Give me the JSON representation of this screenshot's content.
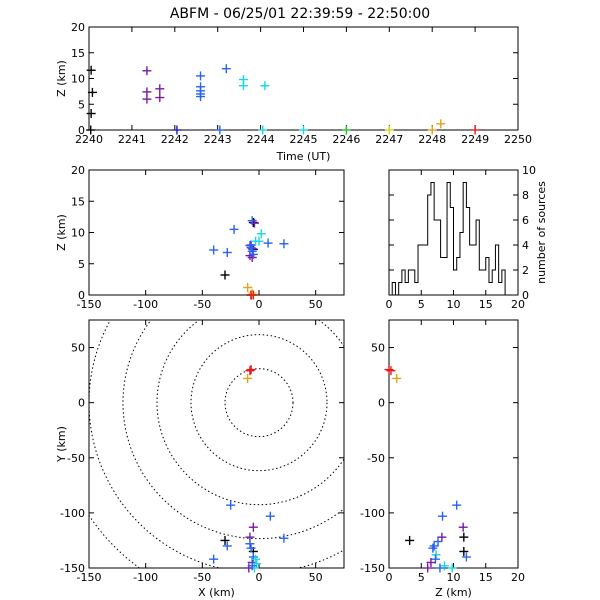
{
  "title": "ABFM - 06/25/01 22:39:59 - 22:50:00",
  "colors": {
    "black": "#000000",
    "purple": "#7a1aa6",
    "navy": "#1a1acc",
    "blue": "#2b63f0",
    "cyan": "#1ad6e6",
    "green": "#22c22a",
    "yellow": "#d6d61a",
    "orange": "#e6a01a",
    "red": "#e61a1a"
  },
  "chart_data": [
    {
      "id": "time",
      "type": "scatter",
      "xlabel": "Time (UT)",
      "ylabel": "Z (km)",
      "xlim": [
        2240,
        2250
      ],
      "ylim": [
        0,
        20
      ],
      "xticks": [
        "2240",
        "2241",
        "2242",
        "2243",
        "2244",
        "2245",
        "2246",
        "2247",
        "2248",
        "2249",
        "2250"
      ],
      "yticks": [
        "0",
        "5",
        "10",
        "15",
        "20"
      ],
      "grid": false,
      "points": [
        {
          "x": 2240.05,
          "y": 11.6,
          "c": "black"
        },
        {
          "x": 2240.08,
          "y": 7.3,
          "c": "black"
        },
        {
          "x": 2240.05,
          "y": 3.2,
          "c": "black"
        },
        {
          "x": 2240.04,
          "y": 0.0,
          "c": "black"
        },
        {
          "x": 2241.35,
          "y": 11.5,
          "c": "purple"
        },
        {
          "x": 2241.35,
          "y": 7.4,
          "c": "purple"
        },
        {
          "x": 2241.35,
          "y": 6.0,
          "c": "purple"
        },
        {
          "x": 2241.65,
          "y": 8.0,
          "c": "purple"
        },
        {
          "x": 2241.65,
          "y": 6.3,
          "c": "purple"
        },
        {
          "x": 2242.05,
          "y": -0.1,
          "c": "navy"
        },
        {
          "x": 2242.6,
          "y": 10.5,
          "c": "blue"
        },
        {
          "x": 2242.6,
          "y": 8.4,
          "c": "blue"
        },
        {
          "x": 2242.6,
          "y": 7.6,
          "c": "blue"
        },
        {
          "x": 2242.6,
          "y": 7.0,
          "c": "blue"
        },
        {
          "x": 2242.6,
          "y": 6.5,
          "c": "blue"
        },
        {
          "x": 2243.2,
          "y": 11.9,
          "c": "blue"
        },
        {
          "x": 2243.05,
          "y": -0.1,
          "c": "blue"
        },
        {
          "x": 2243.6,
          "y": 9.8,
          "c": "cyan"
        },
        {
          "x": 2243.6,
          "y": 8.6,
          "c": "cyan"
        },
        {
          "x": 2244.1,
          "y": 8.6,
          "c": "cyan"
        },
        {
          "x": 2244.05,
          "y": -0.1,
          "c": "cyan"
        },
        {
          "x": 2245.0,
          "y": -0.1,
          "c": "cyan"
        },
        {
          "x": 2246.0,
          "y": -0.1,
          "c": "green"
        },
        {
          "x": 2247.0,
          "y": -0.1,
          "c": "yellow"
        },
        {
          "x": 2248.0,
          "y": 0.0,
          "c": "orange"
        },
        {
          "x": 2248.2,
          "y": 1.2,
          "c": "orange"
        },
        {
          "x": 2249.0,
          "y": -0.1,
          "c": "red"
        }
      ]
    },
    {
      "id": "xz",
      "type": "scatter",
      "xlabel": "",
      "ylabel": "Z (km)",
      "xlim": [
        -150,
        75
      ],
      "ylim": [
        0,
        20
      ],
      "xticks": [
        "-150",
        "-100",
        "-50",
        "0",
        "50"
      ],
      "yticks": [
        "0",
        "5",
        "10",
        "15",
        "20"
      ],
      "grid": false,
      "points": [
        {
          "x": -5,
          "y": 11.6,
          "c": "black"
        },
        {
          "x": -5,
          "y": 7.3,
          "c": "black"
        },
        {
          "x": -30,
          "y": 3.2,
          "c": "black"
        },
        {
          "x": -7,
          "y": 0.0,
          "c": "black"
        },
        {
          "x": -4,
          "y": 11.5,
          "c": "purple"
        },
        {
          "x": -6,
          "y": 7.4,
          "c": "purple"
        },
        {
          "x": -6,
          "y": 6.0,
          "c": "purple"
        },
        {
          "x": -7,
          "y": 8.0,
          "c": "purple"
        },
        {
          "x": -8,
          "y": 6.3,
          "c": "purple"
        },
        {
          "x": -7,
          "y": -0.1,
          "c": "navy"
        },
        {
          "x": -22,
          "y": 10.5,
          "c": "blue"
        },
        {
          "x": -40,
          "y": 7.2,
          "c": "blue"
        },
        {
          "x": -28,
          "y": 6.8,
          "c": "blue"
        },
        {
          "x": -7,
          "y": 7.6,
          "c": "blue"
        },
        {
          "x": -6,
          "y": 7.0,
          "c": "blue"
        },
        {
          "x": -5,
          "y": 6.5,
          "c": "blue"
        },
        {
          "x": 8,
          "y": 8.3,
          "c": "blue"
        },
        {
          "x": 22,
          "y": 8.2,
          "c": "blue"
        },
        {
          "x": -8,
          "y": 7.9,
          "c": "blue"
        },
        {
          "x": -6,
          "y": 11.9,
          "c": "blue"
        },
        {
          "x": -5,
          "y": -0.1,
          "c": "blue"
        },
        {
          "x": 2,
          "y": 9.8,
          "c": "cyan"
        },
        {
          "x": 0,
          "y": 8.6,
          "c": "cyan"
        },
        {
          "x": -3,
          "y": 8.6,
          "c": "cyan"
        },
        {
          "x": -5,
          "y": -0.1,
          "c": "cyan"
        },
        {
          "x": -5,
          "y": -0.1,
          "c": "green"
        },
        {
          "x": -6,
          "y": 0.3,
          "c": "yellow"
        },
        {
          "x": -10,
          "y": 1.2,
          "c": "orange"
        },
        {
          "x": -7,
          "y": 0.0,
          "c": "red"
        },
        {
          "x": -5,
          "y": -0.1,
          "c": "red"
        }
      ]
    },
    {
      "id": "hist",
      "type": "histogram",
      "xlabel": "",
      "ylabel": "number of sources",
      "xlim": [
        0,
        20
      ],
      "ylim": [
        0,
        10
      ],
      "xticks": [
        "0",
        "5",
        "10",
        "15",
        "20"
      ],
      "yticks": [
        "0",
        "2",
        "4",
        "6",
        "8",
        "10"
      ],
      "bin_width": 0.5,
      "bin_start": 0,
      "counts": [
        0,
        1,
        0,
        1,
        2,
        1,
        2,
        2,
        1,
        4,
        4,
        4,
        8,
        9,
        6,
        6,
        3,
        3,
        9,
        7,
        2,
        3,
        5,
        9,
        7,
        4,
        4,
        6,
        2,
        2,
        3,
        1,
        2,
        4,
        1,
        2,
        0,
        0,
        0,
        0
      ]
    },
    {
      "id": "xy",
      "type": "scatter",
      "xlabel": "X (km)",
      "ylabel": "Y (km)",
      "xlim": [
        -150,
        75
      ],
      "ylim": [
        -150,
        75
      ],
      "xticks": [
        "-150",
        "-100",
        "-50",
        "0",
        "50"
      ],
      "yticks": [
        "-150",
        "-100",
        "-50",
        "0",
        "50"
      ],
      "grid": false,
      "range_rings_km": [
        30,
        60,
        90,
        120,
        150,
        180
      ],
      "points": [
        {
          "x": -7,
          "y": 30,
          "c": "red"
        },
        {
          "x": -8,
          "y": 29,
          "c": "red"
        },
        {
          "x": -10,
          "y": 22,
          "c": "orange"
        },
        {
          "x": -25,
          "y": -93,
          "c": "blue"
        },
        {
          "x": 10,
          "y": -103,
          "c": "blue"
        },
        {
          "x": -5,
          "y": -113,
          "c": "purple"
        },
        {
          "x": 22,
          "y": -123,
          "c": "blue"
        },
        {
          "x": -30,
          "y": -125,
          "c": "black"
        },
        {
          "x": -8,
          "y": -122,
          "c": "purple"
        },
        {
          "x": -5,
          "y": -135,
          "c": "black"
        },
        {
          "x": -28,
          "y": -130,
          "c": "blue"
        },
        {
          "x": -40,
          "y": -142,
          "c": "blue"
        },
        {
          "x": -8,
          "y": -128,
          "c": "blue"
        },
        {
          "x": -7,
          "y": -132,
          "c": "blue"
        },
        {
          "x": -5,
          "y": -140,
          "c": "blue"
        },
        {
          "x": -6,
          "y": -145,
          "c": "purple"
        },
        {
          "x": -4,
          "y": -150,
          "c": "cyan"
        },
        {
          "x": -9,
          "y": -150,
          "c": "purple"
        },
        {
          "x": -2,
          "y": -146,
          "c": "cyan"
        },
        {
          "x": -6,
          "y": -148,
          "c": "blue"
        },
        {
          "x": -3,
          "y": -142,
          "c": "cyan"
        }
      ]
    },
    {
      "id": "zy",
      "type": "scatter",
      "xlabel": "Z (km)",
      "ylabel": "",
      "xlim": [
        0,
        20
      ],
      "ylim": [
        -150,
        75
      ],
      "xticks": [
        "0",
        "5",
        "10",
        "15",
        "20"
      ],
      "yticks": [
        "-150",
        "-100",
        "-50",
        "0",
        "50"
      ],
      "grid": false,
      "points": [
        {
          "x": 0.0,
          "y": 30,
          "c": "red"
        },
        {
          "x": 0.3,
          "y": 29,
          "c": "red"
        },
        {
          "x": 1.2,
          "y": 22,
          "c": "orange"
        },
        {
          "x": 10.5,
          "y": -93,
          "c": "blue"
        },
        {
          "x": 8.3,
          "y": -103,
          "c": "blue"
        },
        {
          "x": 11.5,
          "y": -113,
          "c": "purple"
        },
        {
          "x": 8.2,
          "y": -122,
          "c": "purple"
        },
        {
          "x": 11.6,
          "y": -122,
          "c": "black"
        },
        {
          "x": 3.2,
          "y": -125,
          "c": "black"
        },
        {
          "x": 7.6,
          "y": -126,
          "c": "blue"
        },
        {
          "x": 7.0,
          "y": -130,
          "c": "blue"
        },
        {
          "x": 11.6,
          "y": -135,
          "c": "black"
        },
        {
          "x": 6.8,
          "y": -132,
          "c": "blue"
        },
        {
          "x": 7.3,
          "y": -138,
          "c": "cyan"
        },
        {
          "x": 7.2,
          "y": -142,
          "c": "blue"
        },
        {
          "x": 6.5,
          "y": -145,
          "c": "purple"
        },
        {
          "x": 8.6,
          "y": -148,
          "c": "cyan"
        },
        {
          "x": 9.8,
          "y": -150,
          "c": "cyan"
        },
        {
          "x": 12.0,
          "y": -140,
          "c": "blue"
        },
        {
          "x": 6.0,
          "y": -150,
          "c": "purple"
        },
        {
          "x": 7.9,
          "y": -150,
          "c": "blue"
        }
      ]
    }
  ]
}
